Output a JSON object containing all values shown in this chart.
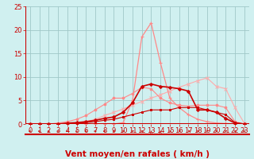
{
  "bg_color": "#d0f0f0",
  "grid_color": "#a0c8c8",
  "red_dark": "#cc0000",
  "red_mid": "#dd3333",
  "red_light": "#ff8888",
  "red_lighter": "#ffaaaa",
  "xlim": [
    -0.5,
    23.5
  ],
  "ylim": [
    0,
    25
  ],
  "xticks": [
    0,
    1,
    2,
    3,
    4,
    5,
    6,
    7,
    8,
    9,
    10,
    11,
    12,
    13,
    14,
    15,
    16,
    17,
    18,
    19,
    20,
    21,
    22,
    23
  ],
  "yticks": [
    0,
    5,
    10,
    15,
    20,
    25
  ],
  "xlabel": "Vent moyen/en rafales ( km/h )",
  "xlabel_color": "#cc0000",
  "tick_color": "#cc0000",
  "tick_fontsize": 6,
  "xlabel_fontsize": 7.5,
  "line_peak_x": [
    0,
    1,
    2,
    3,
    4,
    5,
    6,
    7,
    8,
    9,
    10,
    11,
    12,
    13,
    14,
    15,
    16,
    17,
    18,
    19,
    20,
    21,
    22,
    23
  ],
  "line_peak_y": [
    0,
    0,
    0,
    0,
    0,
    0,
    0,
    0,
    0,
    0,
    0.3,
    5.0,
    18.5,
    21.5,
    13.0,
    5.5,
    3.5,
    2.0,
    1.0,
    0.5,
    0.2,
    0.1,
    0,
    0
  ],
  "line_diag_x": [
    0,
    1,
    2,
    3,
    4,
    5,
    6,
    7,
    8,
    9,
    10,
    11,
    12,
    13,
    14,
    15,
    16,
    17,
    18,
    19,
    20,
    21,
    22,
    23
  ],
  "line_diag_y": [
    0,
    0,
    0,
    0,
    0,
    0.2,
    0.5,
    1.0,
    1.8,
    2.5,
    3.2,
    4.0,
    4.8,
    5.5,
    6.2,
    7.0,
    7.8,
    8.5,
    9.2,
    9.8,
    8.0,
    7.5,
    3.5,
    0.2
  ],
  "line_curve1_x": [
    0,
    1,
    2,
    3,
    4,
    5,
    6,
    7,
    8,
    9,
    10,
    11,
    12,
    13,
    14,
    15,
    16,
    17,
    18,
    19,
    20,
    21,
    22,
    23
  ],
  "line_curve1_y": [
    0,
    0,
    0,
    0.2,
    0.5,
    1.0,
    1.8,
    3.0,
    4.2,
    5.5,
    5.5,
    6.5,
    7.8,
    7.5,
    5.5,
    4.5,
    4.0,
    3.8,
    4.0,
    4.0,
    4.0,
    3.5,
    0.5,
    0
  ],
  "line_main_x": [
    0,
    1,
    2,
    3,
    4,
    5,
    6,
    7,
    8,
    9,
    10,
    11,
    12,
    13,
    14,
    15,
    16,
    17,
    18,
    19,
    20,
    21,
    22,
    23
  ],
  "line_main_y": [
    0,
    0,
    0,
    0,
    0.2,
    0.3,
    0.5,
    0.8,
    1.2,
    1.5,
    2.5,
    4.5,
    8.0,
    8.5,
    8.0,
    7.8,
    7.5,
    7.0,
    3.0,
    3.0,
    2.5,
    1.2,
    0.2,
    0
  ],
  "line_low_x": [
    0,
    1,
    2,
    3,
    4,
    5,
    6,
    7,
    8,
    9,
    10,
    11,
    12,
    13,
    14,
    15,
    16,
    17,
    18,
    19,
    20,
    21,
    22,
    23
  ],
  "line_low_y": [
    0,
    0,
    0,
    0,
    0.1,
    0.2,
    0.3,
    0.5,
    0.8,
    1.0,
    1.5,
    2.0,
    2.5,
    3.0,
    3.0,
    3.0,
    3.5,
    3.5,
    3.5,
    3.0,
    2.5,
    2.0,
    0.3,
    0
  ],
  "arrow_angles": [
    225,
    225,
    225,
    225,
    225,
    225,
    225,
    225,
    225,
    225,
    45,
    45,
    45,
    90,
    90,
    0,
    0,
    0,
    45,
    45,
    45,
    45,
    45,
    225
  ]
}
